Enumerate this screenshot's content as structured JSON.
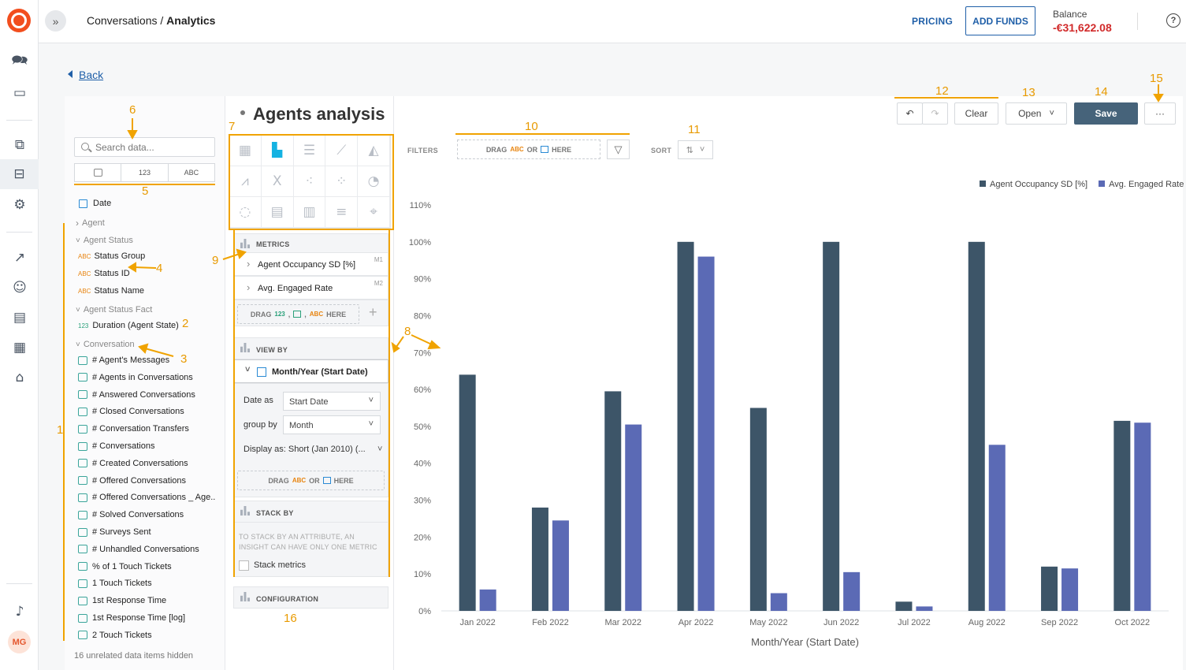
{
  "app": {
    "breadcrumb_parent": "Conversations",
    "breadcrumb_sep": " / ",
    "breadcrumb_current": "Analytics",
    "pricing": "PRICING",
    "add_funds": "ADD FUNDS",
    "balance_label": "Balance",
    "balance_value": "-€31,622.08",
    "help": "?",
    "avatar": "MG"
  },
  "back": "Back",
  "data_panel": {
    "search_placeholder": "Search data...",
    "filter_tabs": [
      "",
      "123",
      "ABC"
    ],
    "date": "Date",
    "groups": {
      "agent": "Agent",
      "agent_status": "Agent Status",
      "agent_status_fact": "Agent Status Fact",
      "conversation": "Conversation"
    },
    "agent_status_items": [
      "Status Group",
      "Status ID",
      "Status Name"
    ],
    "agent_status_fact_items": [
      "Duration (Agent State)"
    ],
    "conversation_items": [
      "# Agent's Messages",
      "# Agents in Conversations",
      "# Answered Conversations",
      "# Closed Conversations",
      "# Conversation Transfers",
      "# Conversations",
      "# Created Conversations",
      "# Offered Conversations",
      "# Offered Conversations _ Age...",
      "# Solved Conversations",
      "# Surveys Sent",
      "# Unhandled Conversations",
      "% of 1 Touch Tickets",
      "1 Touch Tickets",
      "1st Response Time",
      "1st Response Time [log]",
      "2 Touch Tickets"
    ],
    "hidden_note": "16 unrelated data items hidden"
  },
  "config": {
    "metrics_label": "METRICS",
    "metrics": [
      {
        "name": "Agent Occupancy SD [%]",
        "tag": "M1"
      },
      {
        "name": "Avg. Engaged Rate",
        "tag": "M2"
      }
    ],
    "drag_word": "DRAG",
    "here_word": "HERE",
    "or_word": "OR",
    "abc": "ABC",
    "n123": "123",
    "view_by_label": "VIEW BY",
    "view_by_item": "Month/Year (Start Date)",
    "date_as_label": "Date as",
    "date_as_value": "Start Date",
    "group_by_label": "group by",
    "group_by_value": "Month",
    "display_as": "Display as: Short (Jan 2010) (...",
    "stack_by_label": "STACK BY",
    "stack_note_1": "TO STACK BY AN ATTRIBUTE, AN",
    "stack_note_2": "INSIGHT CAN HAVE ONLY ONE METRIC",
    "stack_metrics": "Stack metrics",
    "configuration_label": "CONFIGURATION"
  },
  "insight": {
    "title": "Agents analysis",
    "clear": "Clear",
    "open": "Open",
    "save": "Save",
    "more": "···",
    "filters_label": "FILTERS",
    "sort_label": "SORT"
  },
  "annotations": [
    "1",
    "2",
    "3",
    "4",
    "5",
    "6",
    "7",
    "8",
    "9",
    "10",
    "11",
    "12",
    "13",
    "14",
    "15",
    "16"
  ],
  "colors": {
    "series1": "#3d5568",
    "series2": "#5b6ab5",
    "annotation": "#f0a300",
    "brand": "#f24e1e",
    "link": "#1f5fa8",
    "negative": "#d12a2a"
  },
  "chart_data": {
    "type": "bar",
    "categories": [
      "Jan 2022",
      "Feb 2022",
      "Mar 2022",
      "Apr 2022",
      "May 2022",
      "Jun 2022",
      "Jul 2022",
      "Aug 2022",
      "Sep 2022",
      "Oct 2022"
    ],
    "series": [
      {
        "name": "Agent Occupancy SD [%]",
        "values": [
          64,
          28,
          59.5,
          100,
          55,
          100,
          2.5,
          100,
          12,
          51.5
        ]
      },
      {
        "name": "Avg. Engaged Rate",
        "values": [
          5.8,
          24.5,
          50.5,
          96,
          4.8,
          10.5,
          1.2,
          45,
          11.5,
          51
        ]
      }
    ],
    "xlabel": "Month/Year (Start Date)",
    "ylabel": "",
    "ylim": [
      0,
      110
    ],
    "yticks": [
      "0%",
      "10%",
      "20%",
      "30%",
      "40%",
      "50%",
      "60%",
      "70%",
      "80%",
      "90%",
      "100%",
      "110%"
    ],
    "grid": false,
    "legend": "top-right"
  }
}
